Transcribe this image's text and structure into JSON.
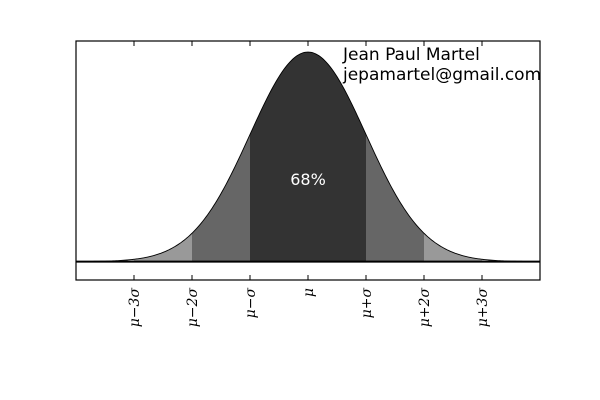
{
  "chart_data": {
    "type": "area",
    "x": {
      "min": -4,
      "max": 4
    },
    "ylim": [
      -0.035,
      0.42
    ],
    "baseline": 0,
    "bands": [
      {
        "from": -1,
        "to": 1,
        "color": "#333333"
      },
      {
        "from": -2,
        "to": -1,
        "color": "#666666"
      },
      {
        "from": 1,
        "to": 2,
        "color": "#666666"
      },
      {
        "from": -3,
        "to": -2,
        "color": "#999999"
      },
      {
        "from": 2,
        "to": 3,
        "color": "#999999"
      },
      {
        "from": -4,
        "to": -3,
        "color": "#cccccc"
      },
      {
        "from": 3,
        "to": 4,
        "color": "#cccccc"
      }
    ],
    "center_label": "68%",
    "ticks": [
      {
        "value": -3,
        "label": "μ−3σ"
      },
      {
        "value": -2,
        "label": "μ−2σ"
      },
      {
        "value": -1,
        "label": "μ−σ"
      },
      {
        "value": 0,
        "label": "μ"
      },
      {
        "value": 1,
        "label": "μ+σ"
      },
      {
        "value": 2,
        "label": "μ+2σ"
      },
      {
        "value": 3,
        "label": "μ+3σ"
      }
    ],
    "annotation": {
      "name": "Jean Paul Martel",
      "email": "jepamartel@gmail.com"
    }
  }
}
